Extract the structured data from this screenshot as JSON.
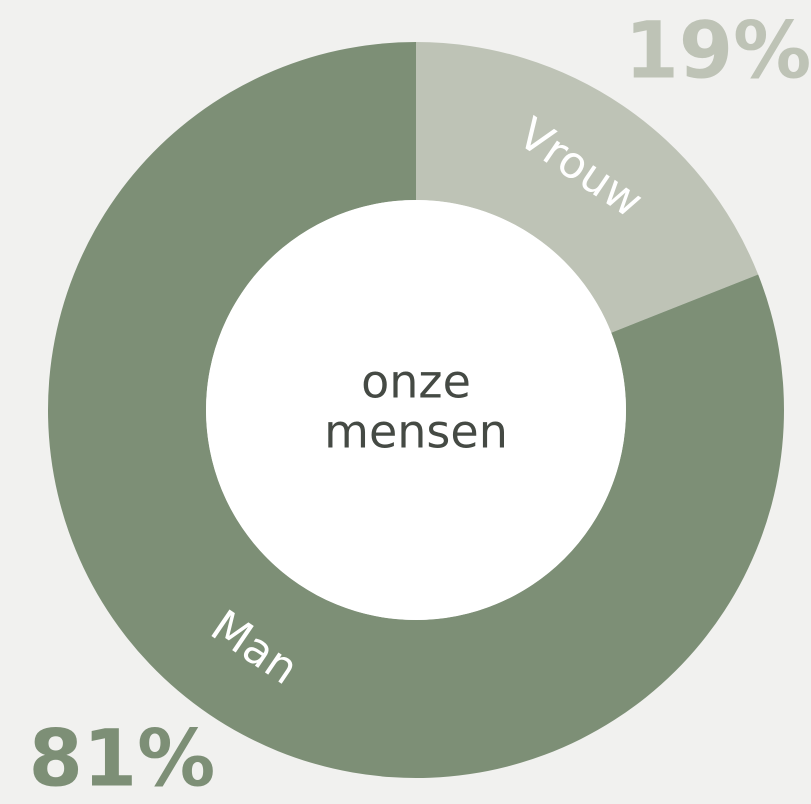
{
  "chart_data": {
    "type": "donut",
    "categories": [
      "Vrouw",
      "Man"
    ],
    "values": [
      19,
      81
    ],
    "value_labels": [
      "19%",
      "81%"
    ],
    "colors": [
      "#bec3b6",
      "#7d8f76"
    ],
    "center_label": [
      "onze",
      "mensen"
    ]
  }
}
